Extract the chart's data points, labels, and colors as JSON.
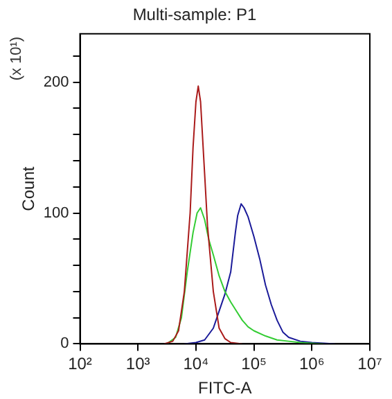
{
  "chart_data": {
    "type": "line",
    "title": "Multi-sample: P1",
    "xlabel": "FITC-A",
    "ylabel": "Count",
    "annotations": [
      "(x 10¹)"
    ],
    "log": "x",
    "grid": false,
    "legend": false,
    "marker": "none",
    "line_style": "solid",
    "xlim": [
      100,
      10000000
    ],
    "xticks": [
      {
        "value": 100,
        "label": "10²"
      },
      {
        "value": 1000,
        "label": "10³"
      },
      {
        "value": 10000,
        "label": "10⁴"
      },
      {
        "value": 100000,
        "label": "10⁵"
      },
      {
        "value": 1000000,
        "label": "10⁶"
      },
      {
        "value": 10000000,
        "label": "10⁷"
      }
    ],
    "ylim": [
      0,
      237
    ],
    "yticks": [
      0,
      {
        "value": 20,
        "label": null
      },
      {
        "value": 40,
        "label": null
      },
      {
        "value": 60,
        "label": null
      },
      {
        "value": 80,
        "label": null
      },
      100,
      {
        "value": 120,
        "label": null
      },
      {
        "value": 140,
        "label": null
      },
      {
        "value": 160,
        "label": null
      },
      {
        "value": 180,
        "label": null
      },
      200,
      {
        "value": 220,
        "label": null
      }
    ],
    "series": [
      {
        "color": "#aa1a1a",
        "x": [
          2818,
          3981,
          5012,
          6310,
          7943,
          8913,
          10000,
          10965,
          12023,
          14125,
          15849,
          19953,
          25119,
          31623,
          39811,
          63096
        ],
        "values": [
          0,
          2,
          10,
          40,
          100,
          150,
          185,
          197,
          185,
          130,
          90,
          40,
          12,
          4,
          1,
          0
        ]
      },
      {
        "color": "#33cc33",
        "x": [
          3162,
          4467,
          5623,
          7079,
          8913,
          10471,
          12023,
          14125,
          16596,
          19953,
          25119,
          31623,
          39811,
          50119,
          63096,
          79433,
          100000,
          158489,
          251189,
          398107,
          630957,
          1584893
        ],
        "values": [
          0,
          5,
          20,
          55,
          85,
          100,
          104,
          95,
          80,
          68,
          52,
          40,
          32,
          25,
          18,
          13,
          10,
          6,
          3,
          2,
          1,
          0
        ]
      },
      {
        "color": "#1a1a99",
        "x": [
          6310,
          10000,
          14125,
          19953,
          25119,
          31623,
          39811,
          47863,
          52481,
          60256,
          67608,
          79433,
          100000,
          125893,
          158489,
          199526,
          251189,
          316228,
          398107,
          630957,
          1000000,
          2511886
        ],
        "values": [
          0,
          1,
          3,
          12,
          25,
          38,
          55,
          85,
          98,
          107,
          104,
          97,
          82,
          65,
          45,
          30,
          18,
          9,
          5,
          2,
          1,
          0
        ]
      }
    ]
  }
}
